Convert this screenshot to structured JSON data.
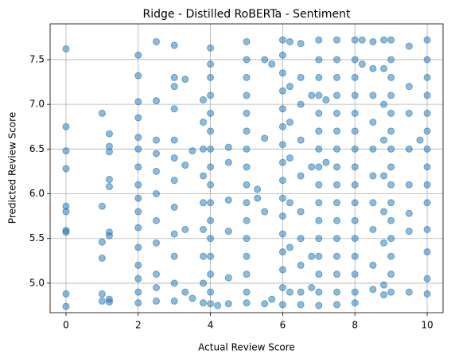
{
  "chart_data": {
    "type": "scatter",
    "title": "Ridge - Distilled RoBERTa - Sentiment",
    "x_label": "Actual Review Score",
    "y_label": "Predicted Review Score",
    "color": "#1f77b4",
    "grid": true,
    "xlim": [
      -0.44,
      10.44
    ],
    "ylim": [
      4.67,
      7.9
    ],
    "xticks": [
      0,
      2,
      4,
      6,
      8,
      10
    ],
    "yticks": [
      {
        "value": 5,
        "label": "5.0"
      },
      5.5,
      {
        "value": 6,
        "label": "6.0"
      },
      6.5,
      {
        "value": 7,
        "label": "7.0"
      },
      7.5
    ],
    "x": [
      0,
      0,
      0,
      0,
      0,
      0,
      0,
      0,
      0,
      0,
      1,
      1,
      1,
      1,
      1,
      1,
      1.2,
      1.2,
      1.2,
      1.2,
      1.2,
      1.2,
      1.2,
      1.2,
      1.2,
      2,
      2,
      2,
      2,
      2,
      2,
      2,
      2,
      2,
      2,
      2,
      2,
      2,
      2,
      2,
      2,
      2.5,
      2.5,
      2.5,
      2.5,
      2.5,
      2.5,
      2.5,
      2.5,
      2.5,
      2.5,
      2.5,
      3,
      3,
      3,
      3,
      3,
      3,
      3,
      3,
      3,
      3,
      3,
      3,
      3.3,
      3.3,
      3.3,
      3.3,
      3.5,
      3.5,
      3.8,
      3.8,
      3.8,
      3.8,
      3.8,
      3.8,
      3.8,
      3.8,
      3.8,
      4,
      4,
      4,
      4,
      4,
      4,
      4,
      4,
      4,
      4,
      4,
      4,
      4,
      4,
      4,
      4,
      4.2,
      4.5,
      4.5,
      4.5,
      4.5,
      4.5,
      4.5,
      5,
      5,
      5,
      5,
      5,
      5,
      5,
      5,
      5,
      5,
      5,
      5,
      5,
      5,
      5,
      5,
      5.3,
      5.3,
      5.5,
      5.5,
      5.5,
      5.5,
      5.7,
      5.7,
      6,
      6,
      6,
      6,
      6,
      6,
      6,
      6,
      6,
      6,
      6,
      6,
      6,
      6,
      6,
      6,
      6.2,
      6.2,
      6.2,
      6.2,
      6.2,
      6.2,
      6.2,
      6.5,
      6.5,
      6.5,
      6.5,
      6.5,
      6.5,
      6.5,
      6.5,
      6.5,
      6.5,
      6.8,
      6.8,
      6.8,
      6.8,
      7,
      7,
      7,
      7,
      7,
      7,
      7,
      7,
      7,
      7,
      7,
      7,
      7,
      7,
      7,
      7,
      7.2,
      7.2,
      7.5,
      7.5,
      7.5,
      7.5,
      7.5,
      7.5,
      7.5,
      7.5,
      7.5,
      7.5,
      7.5,
      7.5,
      7.5,
      7.5,
      7.5,
      7.5,
      8,
      8,
      8,
      8,
      8,
      8,
      8,
      8,
      8,
      8,
      8,
      8,
      8,
      8,
      8,
      8,
      8.2,
      8.2,
      8.5,
      8.5,
      8.5,
      8.5,
      8.5,
      8.5,
      8.5,
      8.5,
      8.5,
      8.5,
      8.8,
      8.8,
      8.8,
      8.8,
      8.8,
      8.8,
      8.8,
      8.8,
      8.8,
      9,
      9,
      9,
      9,
      9,
      9,
      9,
      9,
      9,
      9,
      9,
      9,
      9,
      9,
      9,
      9.5,
      9.5,
      9.5,
      9.5,
      9.5,
      9.5,
      9.5,
      9.5,
      9.8,
      10,
      10,
      10,
      10,
      10,
      10,
      10,
      10,
      10,
      10,
      10,
      10,
      10,
      10
    ],
    "values": [
      7.62,
      6.75,
      6.48,
      6.28,
      5.86,
      5.8,
      5.59,
      5.57,
      4.88,
      4.74,
      6.9,
      5.86,
      5.46,
      5.28,
      4.88,
      4.8,
      6.67,
      6.53,
      6.47,
      6.16,
      6.08,
      5.57,
      5.53,
      4.82,
      4.79,
      7.55,
      7.32,
      7.03,
      6.85,
      6.63,
      6.5,
      6.3,
      6.1,
      5.95,
      5.8,
      5.62,
      5.4,
      5.2,
      5.05,
      4.9,
      4.78,
      7.7,
      7.04,
      6.6,
      6.45,
      6.25,
      6.0,
      5.7,
      5.45,
      5.1,
      4.95,
      4.8,
      7.66,
      7.3,
      7.2,
      6.95,
      6.6,
      6.4,
      6.15,
      5.85,
      5.55,
      5.3,
      5.0,
      4.8,
      7.28,
      6.32,
      5.6,
      4.9,
      6.48,
      4.83,
      7.05,
      6.8,
      6.5,
      6.2,
      5.9,
      5.6,
      5.3,
      5.0,
      4.78,
      7.63,
      7.45,
      7.3,
      7.1,
      6.9,
      6.7,
      6.5,
      6.3,
      6.1,
      5.9,
      5.7,
      5.5,
      5.3,
      5.1,
      4.9,
      4.77,
      4.75,
      6.52,
      6.35,
      5.93,
      5.58,
      5.06,
      4.77,
      7.7,
      7.5,
      7.3,
      7.1,
      6.9,
      6.7,
      6.5,
      6.3,
      6.1,
      5.9,
      5.7,
      5.5,
      5.3,
      5.1,
      4.9,
      4.78,
      6.05,
      5.95,
      7.5,
      6.62,
      5.8,
      4.77,
      7.45,
      4.82,
      7.72,
      7.55,
      7.35,
      7.15,
      6.95,
      6.75,
      6.55,
      6.35,
      6.15,
      5.95,
      5.75,
      5.55,
      5.35,
      5.15,
      4.95,
      4.76,
      7.7,
      7.2,
      6.8,
      6.4,
      5.9,
      5.4,
      4.9,
      7.68,
      7.3,
      7.0,
      6.6,
      6.2,
      5.8,
      5.5,
      5.2,
      4.9,
      4.76,
      7.1,
      6.3,
      5.3,
      4.95,
      7.72,
      7.5,
      7.3,
      7.1,
      6.9,
      6.7,
      6.5,
      6.3,
      6.1,
      5.9,
      5.7,
      5.5,
      5.3,
      5.1,
      4.9,
      4.75,
      7.05,
      6.35,
      7.72,
      7.5,
      7.3,
      7.1,
      6.9,
      6.7,
      6.5,
      6.3,
      6.1,
      5.9,
      5.7,
      5.5,
      5.3,
      5.1,
      4.9,
      4.76,
      7.72,
      7.5,
      7.3,
      7.1,
      6.9,
      6.7,
      6.5,
      6.3,
      6.1,
      5.9,
      5.7,
      5.5,
      5.3,
      5.1,
      4.9,
      4.78,
      7.72,
      7.45,
      7.7,
      7.4,
      7.1,
      6.8,
      6.5,
      6.2,
      5.9,
      5.6,
      5.2,
      4.93,
      7.72,
      7.4,
      7.0,
      6.6,
      6.2,
      5.8,
      5.45,
      4.98,
      4.87,
      7.72,
      7.5,
      7.3,
      7.1,
      6.9,
      6.7,
      6.5,
      6.3,
      6.1,
      5.9,
      5.7,
      5.5,
      5.3,
      5.1,
      4.9,
      7.65,
      7.2,
      6.9,
      6.5,
      6.1,
      5.78,
      5.58,
      4.9,
      6.6,
      7.72,
      7.5,
      7.3,
      7.1,
      6.9,
      6.7,
      6.5,
      6.3,
      6.1,
      5.9,
      5.6,
      5.35,
      5.05,
      4.88
    ]
  }
}
